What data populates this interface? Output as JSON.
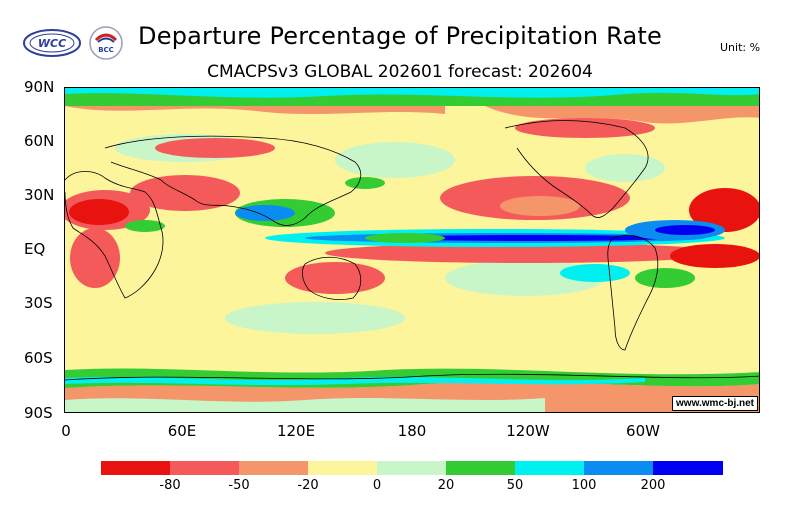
{
  "header": {
    "title": "Departure Percentage of Precipitation Rate",
    "subtitle": "CMACPSv3 GLOBAL 202601 forecast: 202604",
    "unit": "Unit: %"
  },
  "logos": {
    "left": "WCC",
    "right": "BCC"
  },
  "axes": {
    "lat_labels": [
      "90N",
      "60N",
      "30N",
      "EQ",
      "30S",
      "60S",
      "90S"
    ],
    "lon_labels": [
      "0",
      "60E",
      "120E",
      "180",
      "120W",
      "60W"
    ]
  },
  "watermark": "www.wmc-bj.net",
  "legend": {
    "colors": [
      "#e8120e",
      "#f45a5a",
      "#f5956a",
      "#fcf59c",
      "#c8f6c8",
      "#33cc33",
      "#00f0f0",
      "#0a8cf0",
      "#0000f0"
    ],
    "labels": [
      "-80",
      "-50",
      "-20",
      "0",
      "20",
      "50",
      "100",
      "200"
    ]
  }
}
